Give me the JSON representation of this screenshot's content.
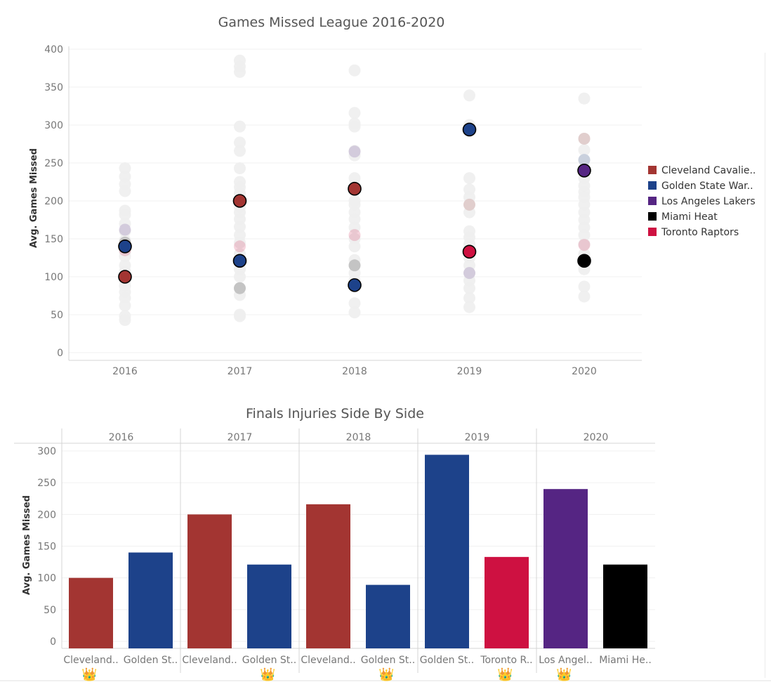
{
  "chart_data": [
    {
      "type": "scatter",
      "title": "Games Missed League 2016-2020",
      "xlabel": "",
      "ylabel": "Avg. Games Missed",
      "x_categories": [
        "2016",
        "2017",
        "2018",
        "2019",
        "2020"
      ],
      "yticks": [
        0,
        50,
        100,
        150,
        200,
        250,
        300,
        350,
        400
      ],
      "ylim": [
        -10,
        400
      ],
      "legend_position": "right",
      "legend": [
        {
          "name": "Cleveland Cavalie..",
          "color": "#a33532"
        },
        {
          "name": "Golden State War..",
          "color": "#1d428a"
        },
        {
          "name": "Los Angeles Lakers",
          "color": "#552583"
        },
        {
          "name": "Miami Heat",
          "color": "#000000"
        },
        {
          "name": "Toronto Raptors",
          "color": "#ce1141"
        }
      ],
      "background_points": [
        {
          "x": "2016",
          "values": [
            243,
            232,
            222,
            213,
            187,
            182,
            170,
            160,
            148,
            140,
            133,
            127,
            115,
            107,
            95,
            88,
            80,
            72,
            62,
            48,
            43
          ]
        },
        {
          "x": "2017",
          "values": [
            385,
            377,
            370,
            298,
            277,
            266,
            243,
            225,
            218,
            210,
            200,
            192,
            185,
            176,
            166,
            155,
            145,
            130,
            120,
            110,
            100,
            85,
            76,
            50,
            48
          ]
        },
        {
          "x": "2018",
          "values": [
            372,
            316,
            302,
            298,
            266,
            260,
            230,
            214,
            200,
            195,
            185,
            176,
            165,
            150,
            140,
            122,
            115,
            105,
            95,
            87,
            65,
            53
          ]
        },
        {
          "x": "2019",
          "values": [
            339,
            300,
            230,
            215,
            205,
            195,
            185,
            160,
            152,
            143,
            133,
            125,
            115,
            105,
            95,
            85,
            72,
            60
          ]
        },
        {
          "x": "2020",
          "values": [
            335,
            282,
            267,
            254,
            230,
            220,
            212,
            205,
            195,
            185,
            175,
            165,
            155,
            143,
            130,
            120,
            110,
            87,
            74
          ]
        }
      ],
      "highlight_points": [
        {
          "x": "2016",
          "team": "Cleveland Cavalie..",
          "value": 100,
          "color": "#a33532"
        },
        {
          "x": "2016",
          "team": "Golden State War..",
          "value": 140,
          "color": "#1d428a"
        },
        {
          "x": "2017",
          "team": "Cleveland Cavalie..",
          "value": 200,
          "color": "#a33532"
        },
        {
          "x": "2017",
          "team": "Golden State War..",
          "value": 121,
          "color": "#1d428a"
        },
        {
          "x": "2018",
          "team": "Cleveland Cavalie..",
          "value": 216,
          "color": "#a33532"
        },
        {
          "x": "2018",
          "team": "Golden State War..",
          "value": 89,
          "color": "#1d428a"
        },
        {
          "x": "2019",
          "team": "Golden State War..",
          "value": 294,
          "color": "#1d428a"
        },
        {
          "x": "2019",
          "team": "Toronto Raptors",
          "value": 133,
          "color": "#ce1141"
        },
        {
          "x": "2020",
          "team": "Los Angeles Lakers",
          "value": 240,
          "color": "#552583"
        },
        {
          "x": "2020",
          "team": "Miami Heat",
          "value": 121,
          "color": "#000000"
        }
      ],
      "faded_team_points": [
        {
          "x": "2016",
          "value": 162,
          "color": "#552583"
        },
        {
          "x": "2016",
          "value": 145,
          "color": "#000000"
        },
        {
          "x": "2016",
          "value": 135,
          "color": "#ce1141"
        },
        {
          "x": "2017",
          "value": 140,
          "color": "#ce1141"
        },
        {
          "x": "2017",
          "value": 85,
          "color": "#000000"
        },
        {
          "x": "2018",
          "value": 265,
          "color": "#552583"
        },
        {
          "x": "2018",
          "value": 155,
          "color": "#ce1141"
        },
        {
          "x": "2018",
          "value": 115,
          "color": "#000000"
        },
        {
          "x": "2019",
          "value": 195,
          "color": "#a33532"
        },
        {
          "x": "2019",
          "value": 105,
          "color": "#552583"
        },
        {
          "x": "2020",
          "value": 282,
          "color": "#a33532"
        },
        {
          "x": "2020",
          "value": 254,
          "color": "#1d428a"
        },
        {
          "x": "2020",
          "value": 142,
          "color": "#ce1141"
        }
      ]
    },
    {
      "type": "bar",
      "title": "Finals Injuries Side By Side",
      "xlabel": "",
      "ylabel": "Avg. Games Missed",
      "yticks": [
        0,
        50,
        100,
        150,
        200,
        250,
        300
      ],
      "ylim": [
        -10,
        310
      ],
      "crown_symbol": "👑",
      "panels": [
        {
          "year": "2016",
          "bars": [
            {
              "label": "Cleveland..",
              "value": 100,
              "color": "#a33532",
              "crown": true
            },
            {
              "label": "Golden St..",
              "value": 140,
              "color": "#1d428a",
              "crown": false
            }
          ]
        },
        {
          "year": "2017",
          "bars": [
            {
              "label": "Cleveland..",
              "value": 200,
              "color": "#a33532",
              "crown": false
            },
            {
              "label": "Golden St..",
              "value": 121,
              "color": "#1d428a",
              "crown": true
            }
          ]
        },
        {
          "year": "2018",
          "bars": [
            {
              "label": "Cleveland..",
              "value": 216,
              "color": "#a33532",
              "crown": false
            },
            {
              "label": "Golden St..",
              "value": 89,
              "color": "#1d428a",
              "crown": true
            }
          ]
        },
        {
          "year": "2019",
          "bars": [
            {
              "label": "Golden St..",
              "value": 294,
              "color": "#1d428a",
              "crown": false
            },
            {
              "label": "Toronto R..",
              "value": 133,
              "color": "#ce1141",
              "crown": true
            }
          ]
        },
        {
          "year": "2020",
          "bars": [
            {
              "label": "Los Angel..",
              "value": 240,
              "color": "#552583",
              "crown": true
            },
            {
              "label": "Miami He..",
              "value": 121,
              "color": "#000000",
              "crown": false
            }
          ]
        }
      ]
    }
  ]
}
